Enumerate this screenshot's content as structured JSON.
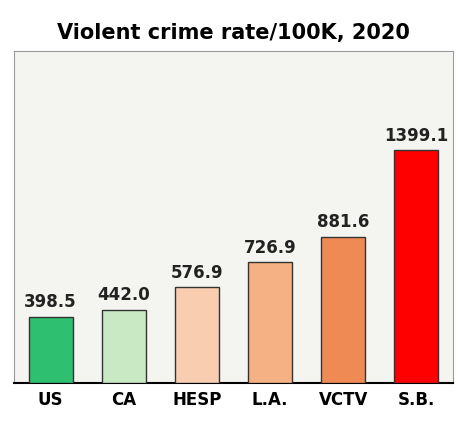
{
  "chart_data": {
    "type": "bar",
    "title": "Violent crime rate/100K, 2020",
    "categories": [
      "US",
      "CA",
      "HESP",
      "L.A.",
      "VCTV",
      "S.B."
    ],
    "values": [
      398.5,
      442.0,
      576.9,
      726.9,
      881.6,
      1399.1
    ],
    "colors": [
      "#2fbf71",
      "#c9e8c4",
      "#f9cdb0",
      "#f5b183",
      "#f08a55",
      "#ff0000"
    ],
    "ylim": [
      0,
      2000
    ],
    "yticks": [],
    "tick_labels": "x",
    "data_labels": true,
    "grid": false
  }
}
